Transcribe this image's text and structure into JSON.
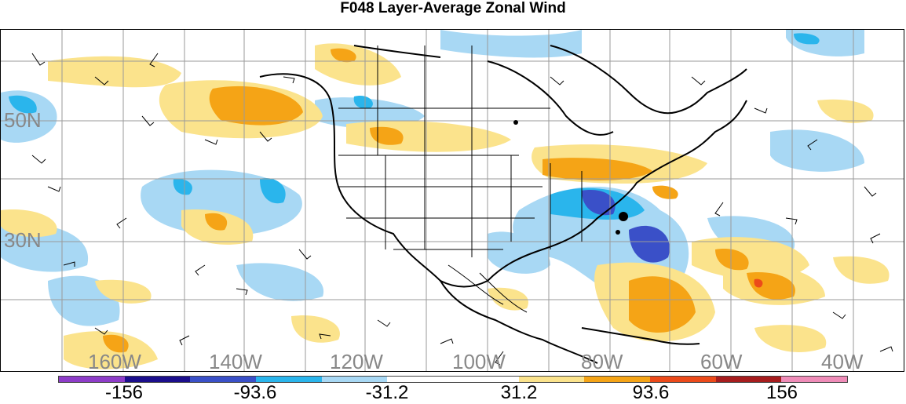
{
  "title": "F048 Layer-Average Zonal Wind",
  "map": {
    "lat_labels": [
      "50N",
      "30N"
    ],
    "lon_labels": [
      "160W",
      "140W",
      "120W",
      "100W",
      "80W",
      "60W",
      "40W"
    ]
  },
  "legend": {
    "colors": [
      "#8e3dc9",
      "#1b0e8c",
      "#3a50c8",
      "#2ab5ec",
      "#a8d8f4",
      "#ffffff",
      "#ffffff",
      "#fbe38c",
      "#f5a416",
      "#ec4a1a",
      "#a71d1e",
      "#ef8cb8"
    ],
    "labels": [
      "-156",
      "-93.6",
      "-31.2",
      "31.2",
      "93.6",
      "156"
    ]
  },
  "colors": {
    "lat_lon_label": "#888888",
    "positive_light": "#fbe38c",
    "positive_mid": "#f5a416",
    "negative_light": "#a8d8f4",
    "negative_mid": "#2ab5ec",
    "negative_strong": "#3a50c8"
  }
}
